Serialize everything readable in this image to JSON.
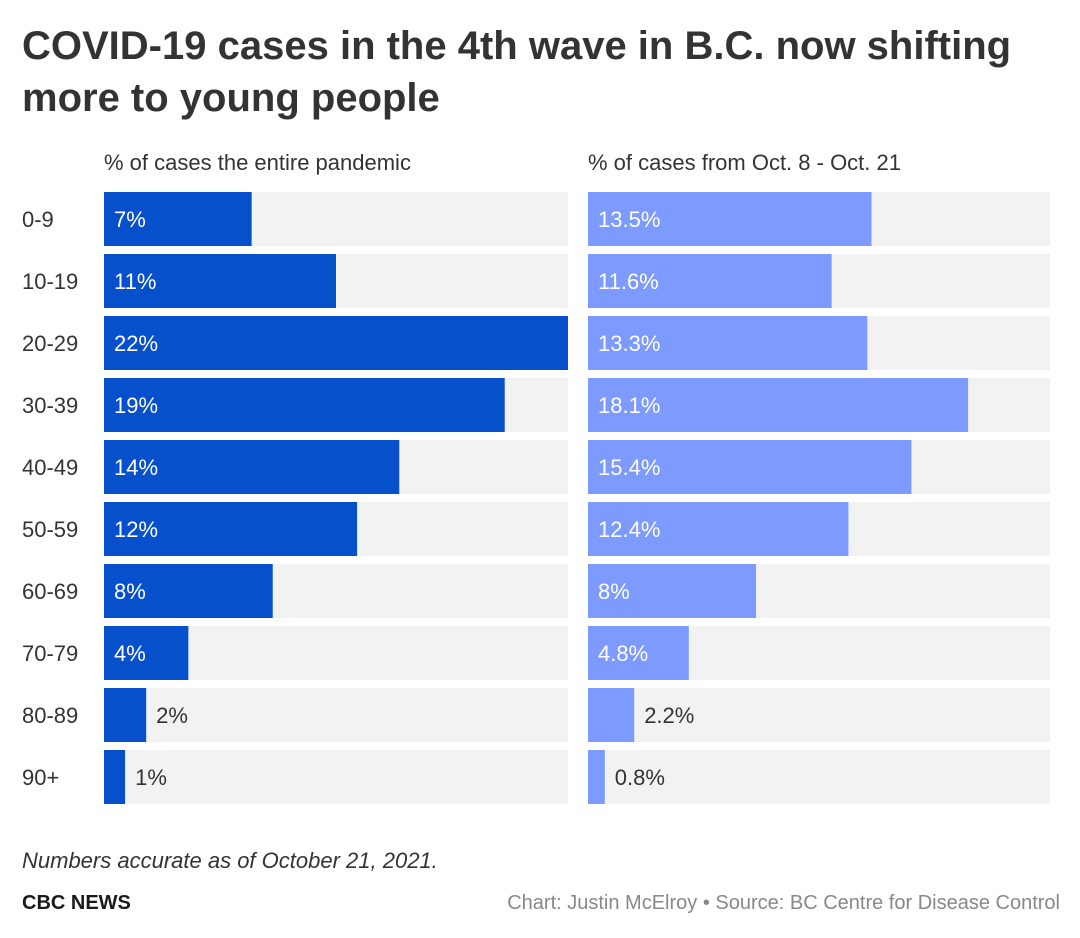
{
  "title": "COVID-19 cases in the 4th wave in B.C. now shifting more to young people",
  "footer": {
    "note": "Numbers accurate as of October 21, 2021.",
    "brand": "CBC NEWS",
    "credit": "Chart: Justin McElroy • Source: BC Centre for Disease Control"
  },
  "colors": {
    "left_bar": "#0650cc",
    "right_bar": "#7d9bff",
    "track": "#f2f2f2",
    "label_inside": "#ffffff",
    "label_outside": "#333333"
  },
  "chart_data": {
    "type": "bar",
    "orientation": "horizontal",
    "title": "COVID-19 cases in the 4th wave in B.C. now shifting more to young people",
    "categories": [
      "0-9",
      "10-19",
      "20-29",
      "30-39",
      "40-49",
      "50-59",
      "60-69",
      "70-79",
      "80-89",
      "90+"
    ],
    "series": [
      {
        "name": "% of cases the entire pandemic",
        "values": [
          7,
          11,
          22,
          19,
          14,
          12,
          8,
          4,
          2,
          1
        ],
        "labels": [
          "7%",
          "11%",
          "22%",
          "19%",
          "14%",
          "12%",
          "8%",
          "4%",
          "2%",
          "1%"
        ]
      },
      {
        "name": "% of cases from Oct. 8 - Oct. 21",
        "values": [
          13.5,
          11.6,
          13.3,
          18.1,
          15.4,
          12.4,
          8,
          4.8,
          2.2,
          0.8
        ],
        "labels": [
          "13.5%",
          "11.6%",
          "13.3%",
          "18.1%",
          "15.4%",
          "12.4%",
          "8%",
          "4.8%",
          "2.2%",
          "0.8%"
        ]
      }
    ],
    "xlim": [
      0,
      22
    ],
    "grid": false,
    "legend": "none"
  }
}
